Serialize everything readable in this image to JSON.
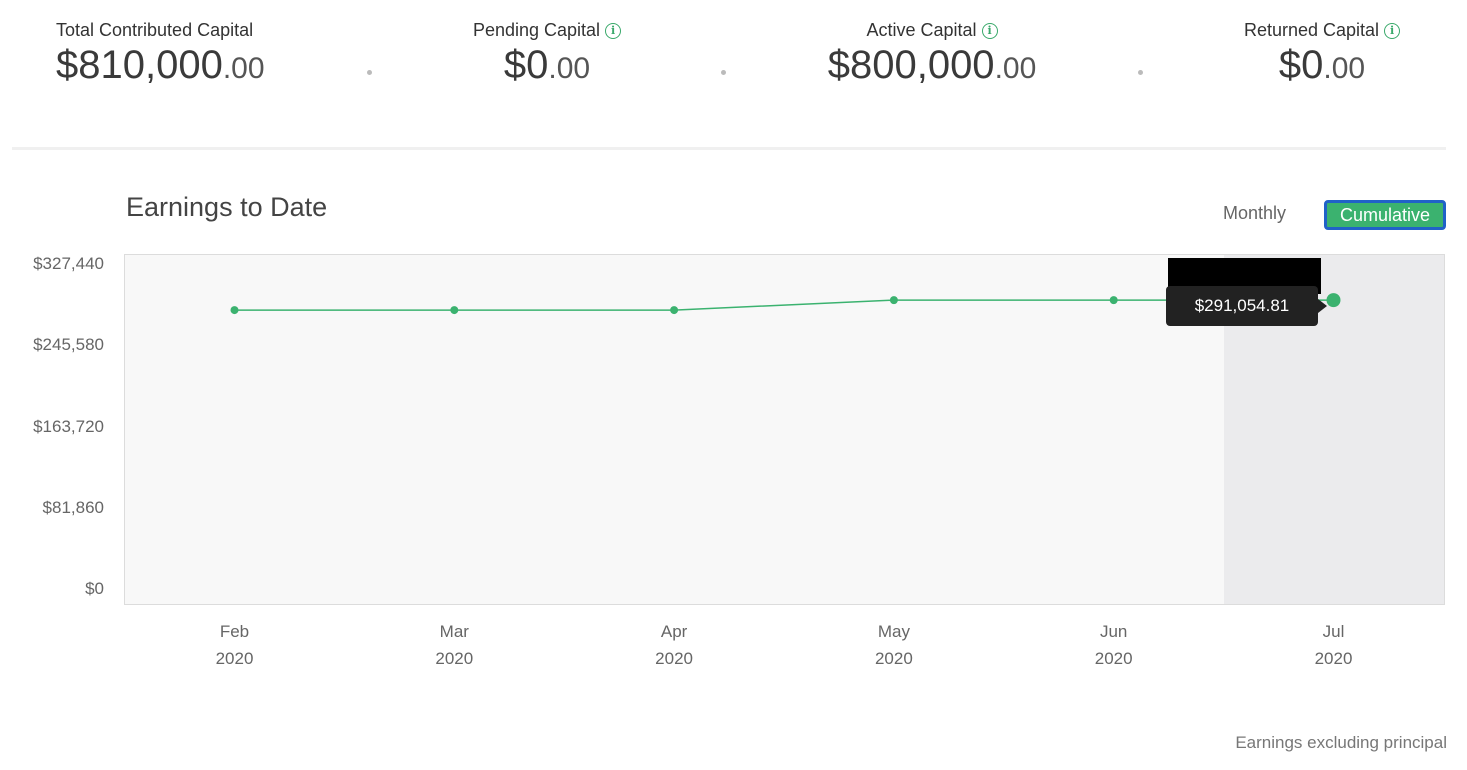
{
  "stats": [
    {
      "label": "Total Contributed Capital",
      "dollars": "$810,000",
      "cents": ".00",
      "info": false
    },
    {
      "label": "Pending Capital",
      "dollars": "$0",
      "cents": ".00",
      "info": true
    },
    {
      "label": "Active Capital",
      "dollars": "$800,000",
      "cents": ".00",
      "info": true
    },
    {
      "label": "Returned Capital",
      "dollars": "$0",
      "cents": ".00",
      "info": true
    }
  ],
  "chart": {
    "title": "Earnings to Date",
    "toggle_monthly": "Monthly",
    "toggle_cumulative": "Cumulative",
    "tooltip": "$291,054.81",
    "footnote": "Earnings excluding principal"
  },
  "chart_data": {
    "type": "line",
    "ytick_labels": [
      "$327,440",
      "$245,580",
      "$163,720",
      "$81,860",
      "$0"
    ],
    "yticks": [
      327440,
      245580,
      163720,
      81860,
      0
    ],
    "ylim": [
      0,
      327440
    ],
    "x_month": [
      "Feb",
      "Mar",
      "Apr",
      "May",
      "Jun",
      "Jul"
    ],
    "x_year": [
      "2020",
      "2020",
      "2020",
      "2020",
      "2020",
      "2020"
    ],
    "values": [
      281000,
      281000,
      281000,
      291054.81,
      291054.81,
      291054.81
    ],
    "highlighted_index": 5,
    "line_color": "#3bb26f",
    "grid": false
  }
}
